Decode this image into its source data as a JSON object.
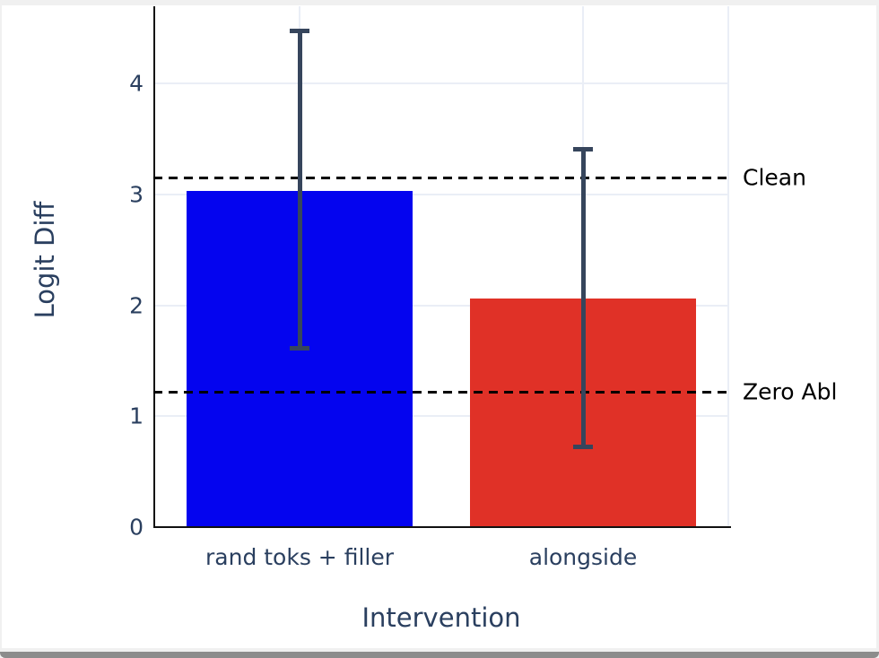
{
  "window": {
    "frame_color": "#f0f0f0",
    "bottom_bar_color": "#8c8c8c"
  },
  "chart_data": {
    "type": "bar",
    "title": "",
    "xlabel": "Intervention",
    "ylabel": "Logit Diff",
    "categories": [
      "rand toks + filler",
      "alongside"
    ],
    "series": [
      {
        "name": "Logit Diff",
        "values": [
          3.03,
          2.06
        ],
        "error_high": [
          4.47,
          3.41
        ],
        "error_low": [
          1.61,
          0.72
        ],
        "bar_colors": [
          "#0404ef",
          "#e03127"
        ]
      }
    ],
    "error_bar_color": "#36455c",
    "hlines": [
      {
        "label": "Clean",
        "value": 3.15
      },
      {
        "label": "Zero Abl",
        "value": 1.22
      }
    ],
    "yticks": [
      0,
      1,
      2,
      3,
      4
    ],
    "ylim": [
      0,
      4.7
    ],
    "grid": true,
    "legend": "none",
    "background": "#ffffff",
    "grid_color": "#eaeef6",
    "text_color": "#2a3f5f",
    "annotation_color": "#000000"
  }
}
